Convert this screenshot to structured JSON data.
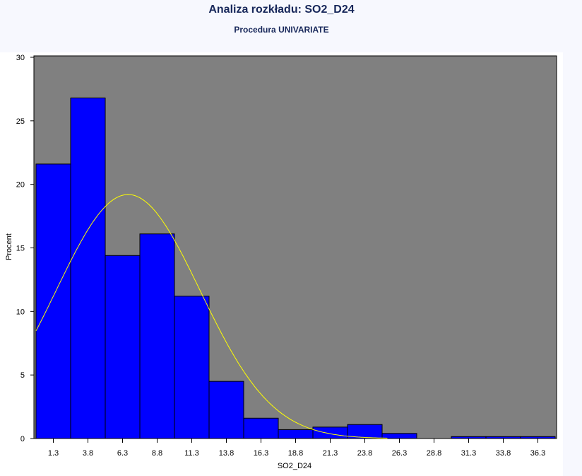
{
  "page": {
    "title": "Analiza rozkładu: SO2_D24",
    "subtitle": "Procedura UNIVARIATE"
  },
  "chart_data": {
    "type": "bar",
    "title": "Analiza rozkładu: SO2_D24",
    "subtitle": "Procedura UNIVARIATE",
    "xlabel": "SO2_D24",
    "ylabel": "Procent",
    "categories": [
      "1.3",
      "3.8",
      "6.3",
      "8.8",
      "11.3",
      "13.8",
      "16.3",
      "18.8",
      "21.3",
      "23.8",
      "26.3",
      "28.8",
      "31.3",
      "33.8",
      "36.3"
    ],
    "values": [
      21.6,
      26.8,
      14.4,
      16.1,
      11.2,
      4.5,
      1.6,
      0.7,
      0.9,
      1.1,
      0.4,
      0,
      0.15,
      0.15,
      0.15
    ],
    "bin_width": 2.5,
    "ylim": [
      0,
      30
    ],
    "yticks": [
      0,
      5,
      10,
      15,
      20,
      25,
      30
    ],
    "grid": false,
    "legend": "none",
    "colors": {
      "plot_background": "#808080",
      "bar_fill": "#0000ff",
      "bar_stroke": "#000000",
      "curve": "#ffff00"
    },
    "overlay": {
      "type": "normal_curve",
      "mean": 6.7,
      "sd": 5.2,
      "peak_percent": 19.2
    }
  }
}
